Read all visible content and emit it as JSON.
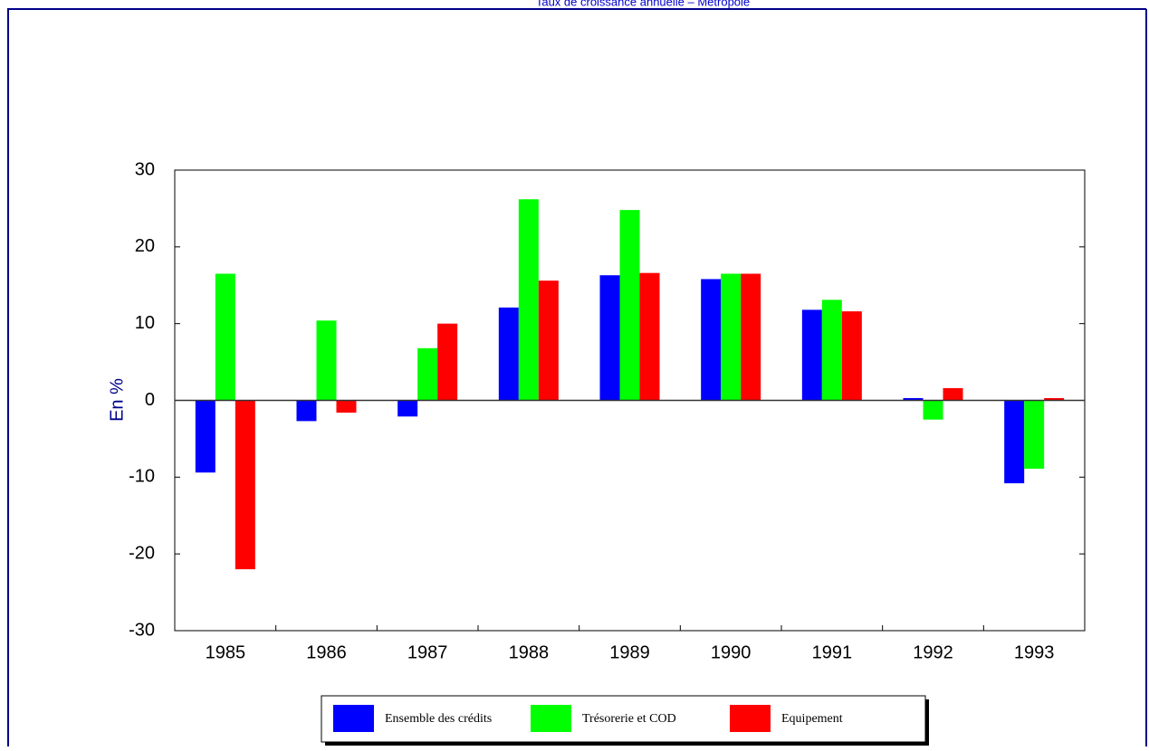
{
  "chart_data": {
    "type": "bar",
    "title": "Taux de croissance annuelle – Métropole",
    "y_label": "En %",
    "categories": [
      "1985",
      "1986",
      "1987",
      "1988",
      "1989",
      "1990",
      "1991",
      "1992",
      "1993"
    ],
    "series": [
      {
        "name": "Ensemble des crédits",
        "color": "#0000ff",
        "values": [
          -9.4,
          -2.7,
          -2.1,
          12.1,
          16.3,
          15.8,
          11.8,
          0.3,
          -10.8
        ]
      },
      {
        "name": "Trésorerie et COD",
        "color": "#00ff00",
        "values": [
          16.5,
          10.4,
          6.8,
          26.2,
          24.8,
          16.5,
          13.1,
          -2.5,
          -8.9
        ]
      },
      {
        "name": "Equipement",
        "color": "#ff0000",
        "values": [
          -22,
          -1.6,
          10,
          15.6,
          16.6,
          16.5,
          11.6,
          1.6,
          0.3
        ]
      }
    ],
    "ylim": [
      -30,
      30
    ],
    "yticks": [
      -30,
      -20,
      -10,
      0,
      10,
      20,
      30
    ],
    "legend": "bottom"
  }
}
